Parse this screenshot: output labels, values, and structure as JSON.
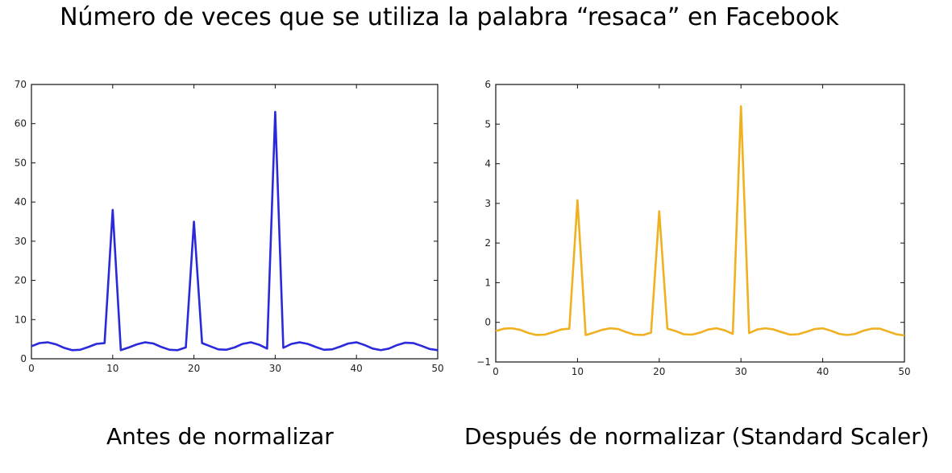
{
  "title": "Número de veces que se utiliza la palabra “resaca” en Facebook",
  "chart_data": [
    {
      "type": "line",
      "title": "",
      "caption": "Antes de normalizar",
      "xlabel": "",
      "ylabel": "",
      "xlim": [
        0,
        50
      ],
      "ylim": [
        0,
        70
      ],
      "xticks": [
        0,
        10,
        20,
        30,
        40,
        50
      ],
      "yticks": [
        0,
        10,
        20,
        30,
        40,
        50,
        60,
        70
      ],
      "grid": false,
      "color": "#2a2adb",
      "series": [
        {
          "x": [
            0,
            1,
            2,
            3,
            4,
            5,
            6,
            7,
            8,
            9,
            10,
            11,
            12,
            13,
            14,
            15,
            16,
            17,
            18,
            19,
            20,
            21,
            22,
            23,
            24,
            25,
            26,
            27,
            28,
            29,
            30,
            31,
            32,
            33,
            34,
            35,
            36,
            37,
            38,
            39,
            40,
            41,
            42,
            43,
            44,
            45,
            46,
            47,
            48,
            49,
            50
          ],
          "values": [
            3.2,
            4.0,
            4.2,
            3.7,
            2.8,
            2.2,
            2.3,
            3.0,
            3.8,
            4.0,
            38,
            2.2,
            2.9,
            3.7,
            4.2,
            3.9,
            3.0,
            2.3,
            2.2,
            2.9,
            35,
            4.0,
            3.2,
            2.4,
            2.3,
            2.9,
            3.8,
            4.2,
            3.6,
            2.6,
            63,
            2.8,
            3.8,
            4.2,
            3.8,
            3.0,
            2.3,
            2.4,
            3.1,
            3.9,
            4.2,
            3.5,
            2.6,
            2.2,
            2.6,
            3.5,
            4.1,
            4.0,
            3.3,
            2.5,
            2.2
          ]
        }
      ]
    },
    {
      "type": "line",
      "title": "",
      "caption": "Después de normalizar (Standard Scaler)",
      "xlabel": "",
      "ylabel": "",
      "xlim": [
        0,
        50
      ],
      "ylim": [
        -1,
        6
      ],
      "xticks": [
        0,
        10,
        20,
        30,
        40,
        50
      ],
      "yticks": [
        -1,
        0,
        1,
        2,
        3,
        4,
        5,
        6
      ],
      "ytick_labels": [
        "−1",
        "0",
        "1",
        "2",
        "3",
        "4",
        "5",
        "6"
      ],
      "grid": false,
      "color": "#f0b020",
      "series": [
        {
          "x": [
            0,
            1,
            2,
            3,
            4,
            5,
            6,
            7,
            8,
            9,
            10,
            11,
            12,
            13,
            14,
            15,
            16,
            17,
            18,
            19,
            20,
            21,
            22,
            23,
            24,
            25,
            26,
            27,
            28,
            29,
            30,
            31,
            32,
            33,
            34,
            35,
            36,
            37,
            38,
            39,
            40,
            41,
            42,
            43,
            44,
            45,
            46,
            47,
            48,
            49,
            50
          ],
          "values": [
            -0.22,
            -0.16,
            -0.15,
            -0.19,
            -0.27,
            -0.32,
            -0.31,
            -0.25,
            -0.18,
            -0.16,
            3.08,
            -0.32,
            -0.26,
            -0.19,
            -0.15,
            -0.17,
            -0.25,
            -0.31,
            -0.32,
            -0.26,
            2.8,
            -0.16,
            -0.22,
            -0.3,
            -0.31,
            -0.26,
            -0.18,
            -0.15,
            -0.2,
            -0.29,
            5.45,
            -0.27,
            -0.18,
            -0.15,
            -0.18,
            -0.25,
            -0.31,
            -0.3,
            -0.24,
            -0.17,
            -0.15,
            -0.21,
            -0.29,
            -0.32,
            -0.29,
            -0.21,
            -0.16,
            -0.16,
            -0.23,
            -0.3,
            -0.33
          ]
        }
      ]
    }
  ]
}
